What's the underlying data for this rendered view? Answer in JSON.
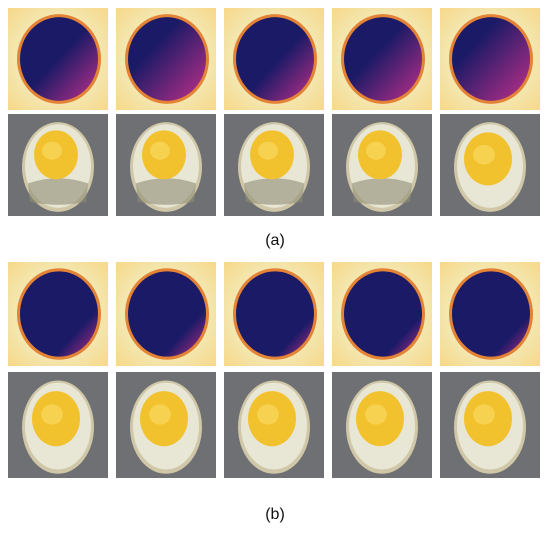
{
  "panels": [
    {
      "id": "a",
      "label": "(a)",
      "thermal_tiles": [
        {
          "index": 1,
          "hot_fraction": 0.35
        },
        {
          "index": 2,
          "hot_fraction": 0.55
        },
        {
          "index": 3,
          "hot_fraction": 0.3
        },
        {
          "index": 4,
          "hot_fraction": 0.45
        },
        {
          "index": 5,
          "hot_fraction": 0.6
        }
      ],
      "photo_tiles": [
        {
          "index": 1,
          "yolk_state": "soft"
        },
        {
          "index": 2,
          "yolk_state": "soft"
        },
        {
          "index": 3,
          "yolk_state": "soft"
        },
        {
          "index": 4,
          "yolk_state": "soft"
        },
        {
          "index": 5,
          "yolk_state": "set"
        }
      ]
    },
    {
      "id": "b",
      "label": "(b)",
      "thermal_tiles": [
        {
          "index": 1,
          "hot_fraction": 0.05
        },
        {
          "index": 2,
          "hot_fraction": 0.05
        },
        {
          "index": 3,
          "hot_fraction": 0.0
        },
        {
          "index": 4,
          "hot_fraction": 0.0
        },
        {
          "index": 5,
          "hot_fraction": 0.0
        }
      ],
      "photo_tiles": [
        {
          "index": 1,
          "yolk_state": "set"
        },
        {
          "index": 2,
          "yolk_state": "set"
        },
        {
          "index": 3,
          "yolk_state": "set"
        },
        {
          "index": 4,
          "yolk_state": "set"
        },
        {
          "index": 5,
          "yolk_state": "set"
        }
      ]
    }
  ],
  "colors": {
    "thermal_background": "#f3e7b0",
    "thermal_cold": "#1a1a66",
    "thermal_hot": "#c0308a",
    "thermal_rim": "#e07020",
    "photo_background": "#6f7073",
    "egg_white": "#e8e6d4",
    "yolk": "#f2c22e"
  }
}
